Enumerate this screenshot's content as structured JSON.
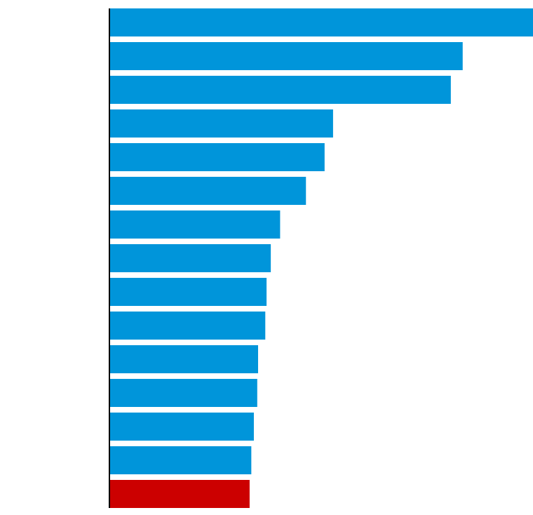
{
  "chart_data": {
    "type": "bar",
    "orientation": "horizontal",
    "title": "",
    "xlabel": "",
    "ylabel": "",
    "grid": false,
    "legend": "none",
    "xlim": [
      0,
      100
    ],
    "values": [
      100,
      83.4,
      80.6,
      52.8,
      50.8,
      46.4,
      40.3,
      38.1,
      37.1,
      36.8,
      35.1,
      34.9,
      34.1,
      33.5,
      33.1
    ],
    "highlight_index": 14,
    "colors": {
      "bar": "#0095da",
      "highlight": "#cc0000",
      "axis": "#000000"
    }
  }
}
